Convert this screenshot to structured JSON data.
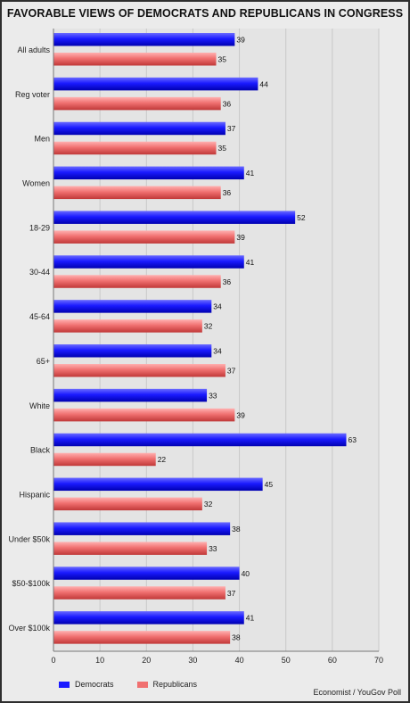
{
  "chart_data": {
    "type": "bar",
    "title": "FAVORABLE VIEWS OF DEMOCRATS AND REPUBLICANS IN CONGRESS",
    "categories": [
      "All adults",
      "Reg voter",
      "Men",
      "Women",
      "18-29",
      "30-44",
      "45-64",
      "65+",
      "White",
      "Black",
      "Hispanic",
      "Under $50k",
      "$50-$100k",
      "Over $100k"
    ],
    "series": [
      {
        "name": "Democrats",
        "color": "#1a1aff",
        "values": [
          39,
          44,
          37,
          41,
          52,
          41,
          34,
          34,
          33,
          63,
          45,
          38,
          40,
          41
        ]
      },
      {
        "name": "Republicans",
        "color": "#f07070",
        "values": [
          35,
          36,
          35,
          36,
          39,
          36,
          32,
          37,
          39,
          22,
          32,
          33,
          37,
          38
        ]
      }
    ],
    "xticks": [
      "0",
      "10",
      "20",
      "30",
      "40",
      "50",
      "60",
      "70"
    ],
    "xlim": [
      0,
      70
    ],
    "orientation": "horizontal",
    "grid": true,
    "legend": "bottom-left",
    "source": "Economist / YouGov Poll"
  }
}
